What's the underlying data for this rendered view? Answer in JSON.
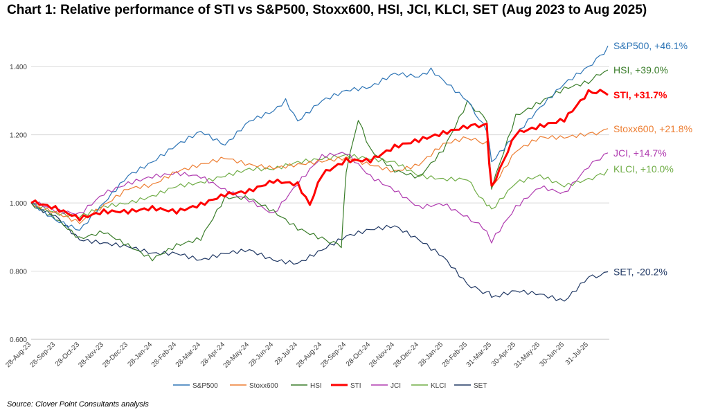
{
  "title": "Chart 1: Relative performance of STI vs S&P500, Stoxx600, HSI, JCI, KLCI, SET (Aug 2023 to Aug 2025)",
  "source": "Source: Clover Point Consultants analysis",
  "chart_data": {
    "type": "line",
    "ylim": [
      0.6,
      1.5
    ],
    "yticks": [
      0.6,
      0.8,
      1.0,
      1.2,
      1.4
    ],
    "ytick_labels": [
      "0.600",
      "0.800",
      "1.000",
      "1.200",
      "1.400"
    ],
    "xtick_labels": [
      "28-Aug-23",
      "28-Sep-23",
      "28-Oct-23",
      "28-Nov-23",
      "28-Dec-23",
      "28-Jan-24",
      "28-Feb-24",
      "28-Mar-24",
      "28-Apr-24",
      "28-May-24",
      "28-Jun-24",
      "28-Jul-24",
      "28-Aug-24",
      "28-Sep-24",
      "28-Oct-24",
      "28-Nov-24",
      "28-Dec-24",
      "28-Jan-25",
      "28-Feb-25",
      "31-Mar-25",
      "30-Apr-25",
      "31-May-25",
      "30-Jun-25",
      "31-Jul-25"
    ],
    "grid": true,
    "legend": "bottom",
    "series": [
      {
        "name": "S&P500",
        "color": "#2E75B6",
        "width": 1.2,
        "end_label": "S&P500, +46.1%",
        "label_bold": false,
        "points": [
          [
            0,
            1.0
          ],
          [
            1,
            0.95
          ],
          [
            2,
            0.92
          ],
          [
            3,
            1.0
          ],
          [
            4,
            1.08
          ],
          [
            5,
            1.12
          ],
          [
            6,
            1.17
          ],
          [
            7,
            1.21
          ],
          [
            8,
            1.17
          ],
          [
            9,
            1.24
          ],
          [
            10,
            1.27
          ],
          [
            10.5,
            1.3
          ],
          [
            11,
            1.24
          ],
          [
            12,
            1.3
          ],
          [
            13,
            1.33
          ],
          [
            14,
            1.34
          ],
          [
            15,
            1.38
          ],
          [
            16,
            1.37
          ],
          [
            16.5,
            1.39
          ],
          [
            17,
            1.36
          ],
          [
            18,
            1.3
          ],
          [
            18.8,
            1.22
          ],
          [
            19,
            1.12
          ],
          [
            20,
            1.2
          ],
          [
            21,
            1.28
          ],
          [
            22,
            1.35
          ],
          [
            23,
            1.4
          ],
          [
            23.8,
            1.461
          ]
        ]
      },
      {
        "name": "Stoxx600",
        "color": "#ED7D31",
        "width": 1.2,
        "end_label": "Stoxx600, +21.8%",
        "label_bold": false,
        "points": [
          [
            0,
            1.0
          ],
          [
            1,
            0.98
          ],
          [
            2,
            0.95
          ],
          [
            3,
            1.0
          ],
          [
            4,
            1.05
          ],
          [
            5,
            1.06
          ],
          [
            6,
            1.1
          ],
          [
            7,
            1.12
          ],
          [
            8,
            1.14
          ],
          [
            9,
            1.12
          ],
          [
            10,
            1.11
          ],
          [
            11,
            1.12
          ],
          [
            12,
            1.13
          ],
          [
            13,
            1.14
          ],
          [
            14,
            1.12
          ],
          [
            15,
            1.1
          ],
          [
            16,
            1.12
          ],
          [
            17,
            1.18
          ],
          [
            18,
            1.2
          ],
          [
            18.8,
            1.18
          ],
          [
            19,
            1.05
          ],
          [
            20,
            1.16
          ],
          [
            21,
            1.2
          ],
          [
            22,
            1.2
          ],
          [
            23,
            1.21
          ],
          [
            23.8,
            1.218
          ]
        ]
      },
      {
        "name": "HSI",
        "color": "#3A7D2A",
        "width": 1.2,
        "end_label": "HSI, +39.0%",
        "label_bold": false,
        "points": [
          [
            0,
            1.0
          ],
          [
            1,
            0.96
          ],
          [
            2,
            0.9
          ],
          [
            3,
            0.92
          ],
          [
            4,
            0.88
          ],
          [
            5,
            0.84
          ],
          [
            6,
            0.88
          ],
          [
            7,
            0.9
          ],
          [
            8,
            1.02
          ],
          [
            9,
            1.02
          ],
          [
            10,
            0.98
          ],
          [
            11,
            0.93
          ],
          [
            12,
            0.9
          ],
          [
            12.8,
            0.87
          ],
          [
            13,
            1.1
          ],
          [
            13.5,
            1.25
          ],
          [
            14,
            1.16
          ],
          [
            15,
            1.1
          ],
          [
            16,
            1.08
          ],
          [
            17,
            1.16
          ],
          [
            18,
            1.3
          ],
          [
            18.8,
            1.24
          ],
          [
            19,
            1.05
          ],
          [
            20,
            1.26
          ],
          [
            21,
            1.3
          ],
          [
            22,
            1.34
          ],
          [
            23,
            1.36
          ],
          [
            23.8,
            1.39
          ]
        ]
      },
      {
        "name": "STI",
        "color": "#FF0000",
        "width": 3,
        "end_label": "STI, +31.7%",
        "label_bold": true,
        "points": [
          [
            0,
            1.0
          ],
          [
            1,
            0.98
          ],
          [
            2,
            0.95
          ],
          [
            3,
            0.97
          ],
          [
            4,
            0.97
          ],
          [
            5,
            0.98
          ],
          [
            6,
            0.97
          ],
          [
            7,
            0.99
          ],
          [
            8,
            1.02
          ],
          [
            9,
            1.03
          ],
          [
            10,
            1.06
          ],
          [
            11,
            1.05
          ],
          [
            11.5,
            0.99
          ],
          [
            12,
            1.08
          ],
          [
            13,
            1.12
          ],
          [
            14,
            1.12
          ],
          [
            15,
            1.16
          ],
          [
            16,
            1.18
          ],
          [
            17,
            1.2
          ],
          [
            18,
            1.22
          ],
          [
            18.8,
            1.22
          ],
          [
            19,
            1.04
          ],
          [
            20,
            1.2
          ],
          [
            21,
            1.22
          ],
          [
            22,
            1.24
          ],
          [
            23,
            1.32
          ],
          [
            23.8,
            1.317
          ]
        ]
      },
      {
        "name": "JCI",
        "color": "#B03CB0",
        "width": 1.2,
        "end_label": "JCI, +14.7%",
        "label_bold": false,
        "points": [
          [
            0,
            1.0
          ],
          [
            1,
            0.97
          ],
          [
            2,
            0.96
          ],
          [
            3,
            1.02
          ],
          [
            4,
            1.05
          ],
          [
            5,
            1.07
          ],
          [
            6,
            1.08
          ],
          [
            7,
            1.07
          ],
          [
            8,
            1.03
          ],
          [
            9,
            1.0
          ],
          [
            10,
            0.96
          ],
          [
            11,
            1.05
          ],
          [
            12,
            1.13
          ],
          [
            13,
            1.14
          ],
          [
            14,
            1.07
          ],
          [
            15,
            1.03
          ],
          [
            16,
            0.98
          ],
          [
            17,
            0.99
          ],
          [
            18,
            0.95
          ],
          [
            18.8,
            0.92
          ],
          [
            19,
            0.88
          ],
          [
            20,
            0.98
          ],
          [
            21,
            1.04
          ],
          [
            22,
            1.02
          ],
          [
            23,
            1.1
          ],
          [
            23.8,
            1.147
          ]
        ]
      },
      {
        "name": "KLCI",
        "color": "#70AD47",
        "width": 1.2,
        "end_label": "KLCI, +10.0%",
        "label_bold": false,
        "points": [
          [
            0,
            1.0
          ],
          [
            1,
            0.97
          ],
          [
            2,
            0.96
          ],
          [
            3,
            0.99
          ],
          [
            4,
            1.0
          ],
          [
            5,
            1.02
          ],
          [
            6,
            1.05
          ],
          [
            7,
            1.06
          ],
          [
            8,
            1.08
          ],
          [
            9,
            1.1
          ],
          [
            10,
            1.1
          ],
          [
            11,
            1.12
          ],
          [
            12,
            1.13
          ],
          [
            13,
            1.14
          ],
          [
            14,
            1.13
          ],
          [
            15,
            1.12
          ],
          [
            16,
            1.08
          ],
          [
            17,
            1.07
          ],
          [
            18,
            1.07
          ],
          [
            18.8,
            1.0
          ],
          [
            19,
            0.98
          ],
          [
            20,
            1.06
          ],
          [
            21,
            1.08
          ],
          [
            22,
            1.05
          ],
          [
            23,
            1.07
          ],
          [
            23.8,
            1.1
          ]
        ]
      },
      {
        "name": "SET",
        "color": "#203864",
        "width": 1.2,
        "end_label": "SET, -20.2%",
        "label_bold": false,
        "points": [
          [
            0,
            1.0
          ],
          [
            1,
            0.97
          ],
          [
            2,
            0.9
          ],
          [
            3,
            0.89
          ],
          [
            4,
            0.88
          ],
          [
            5,
            0.86
          ],
          [
            6,
            0.86
          ],
          [
            7,
            0.84
          ],
          [
            8,
            0.86
          ],
          [
            9,
            0.87
          ],
          [
            10,
            0.84
          ],
          [
            11,
            0.83
          ],
          [
            12,
            0.87
          ],
          [
            13,
            0.91
          ],
          [
            14,
            0.93
          ],
          [
            15,
            0.94
          ],
          [
            16,
            0.9
          ],
          [
            17,
            0.85
          ],
          [
            18,
            0.77
          ],
          [
            18.8,
            0.74
          ],
          [
            19,
            0.73
          ],
          [
            20,
            0.75
          ],
          [
            21,
            0.74
          ],
          [
            22,
            0.72
          ],
          [
            23,
            0.79
          ],
          [
            23.8,
            0.798
          ]
        ]
      }
    ]
  }
}
